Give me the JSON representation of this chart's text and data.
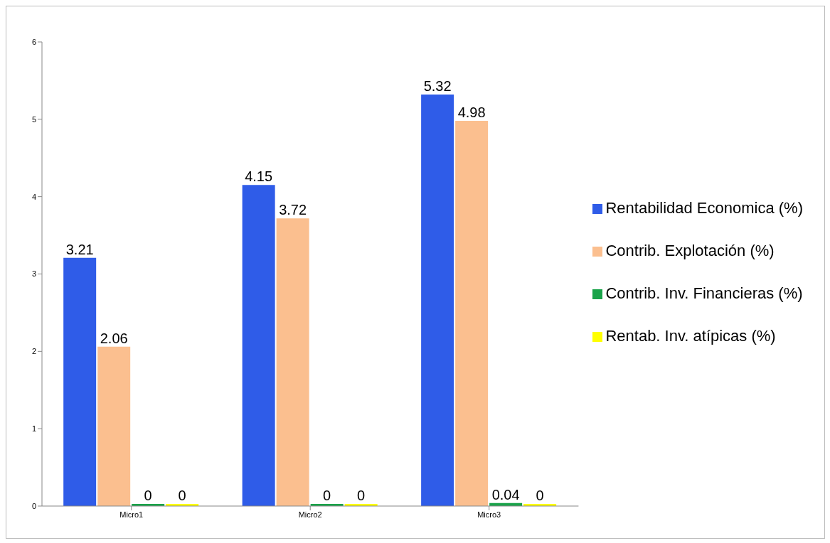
{
  "chart_data": {
    "type": "bar",
    "categories": [
      "Micro1",
      "Micro2",
      "Micro3"
    ],
    "series": [
      {
        "name": "Rentabilidad Economica (%)",
        "color": "#2f5ce8",
        "values": [
          3.21,
          4.15,
          5.32
        ]
      },
      {
        "name": "Contrib. Explotación (%)",
        "color": "#fbbf8f",
        "values": [
          2.06,
          3.72,
          4.98
        ]
      },
      {
        "name": "Contrib. Inv. Financieras (%)",
        "color": "#1aa34a",
        "values": [
          0,
          0,
          0.04
        ]
      },
      {
        "name": "Rentab. Inv. atípicas (%)",
        "color": "#ffff00",
        "values": [
          0,
          0,
          0
        ]
      }
    ],
    "ylim": [
      0,
      6
    ],
    "yticks": [
      0,
      1,
      2,
      3,
      4,
      5,
      6
    ],
    "grid": false,
    "legend": "right",
    "data_labels": true
  }
}
